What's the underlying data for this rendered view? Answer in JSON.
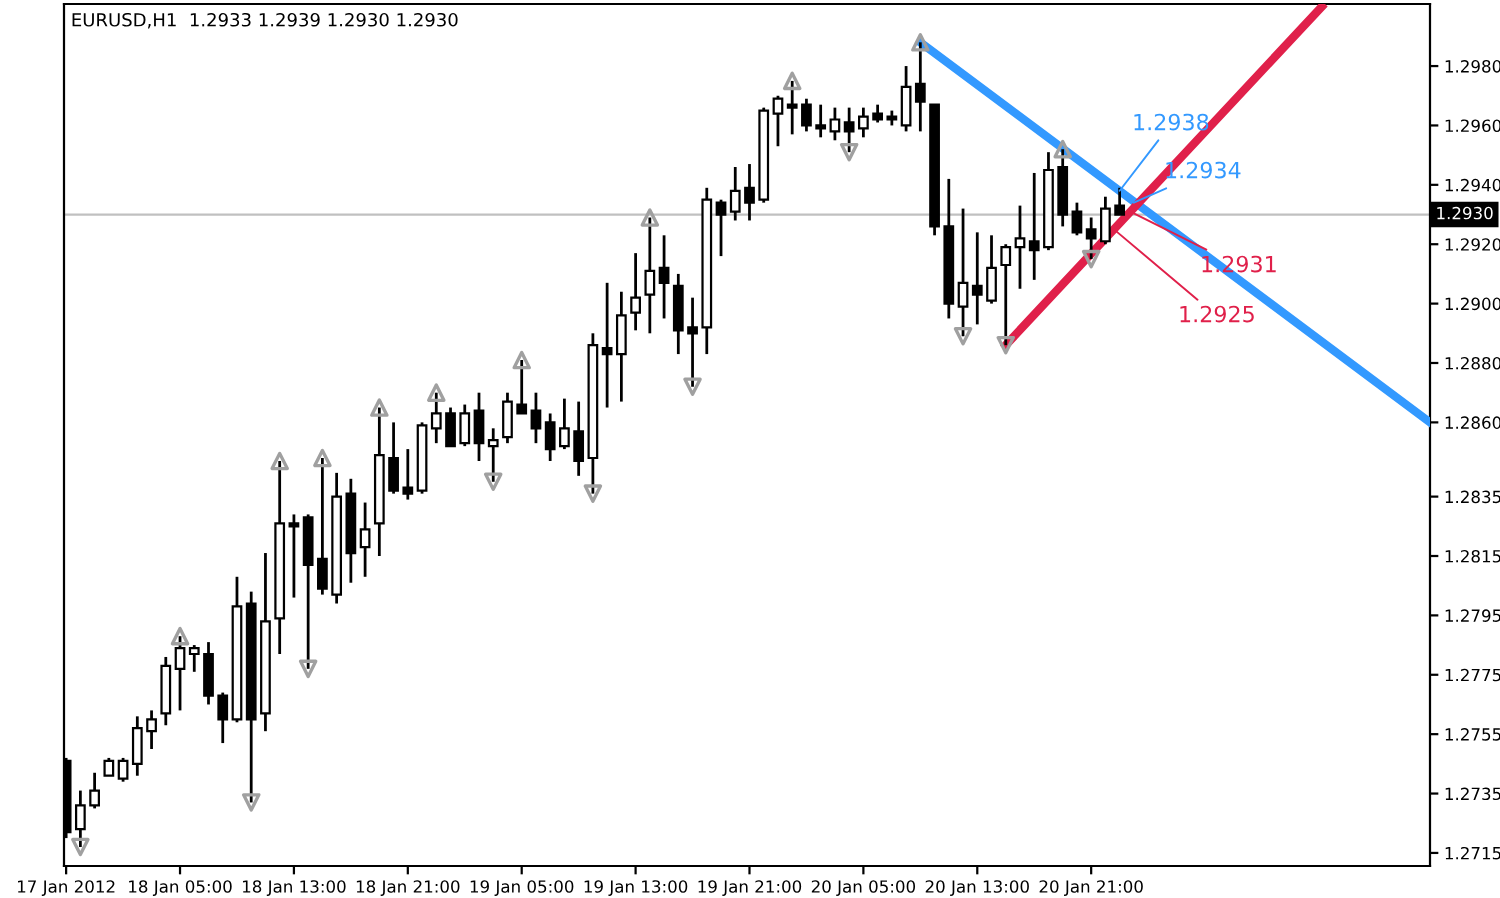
{
  "chart_data": {
    "type": "candlestick",
    "title": "EURUSD,H1  1.2933 1.2939 1.2930 1.2930",
    "x": [
      "2012-01-17T21:00",
      "2012-01-17T22:00",
      "2012-01-17T23:00",
      "2012-01-18T00:00",
      "2012-01-18T01:00",
      "2012-01-18T02:00",
      "2012-01-18T03:00",
      "2012-01-18T04:00",
      "2012-01-18T05:00",
      "2012-01-18T06:00",
      "2012-01-18T07:00",
      "2012-01-18T08:00",
      "2012-01-18T09:00",
      "2012-01-18T10:00",
      "2012-01-18T11:00",
      "2012-01-18T12:00",
      "2012-01-18T13:00",
      "2012-01-18T14:00",
      "2012-01-18T15:00",
      "2012-01-18T16:00",
      "2012-01-18T17:00",
      "2012-01-18T18:00",
      "2012-01-18T19:00",
      "2012-01-18T20:00",
      "2012-01-18T21:00",
      "2012-01-18T22:00",
      "2012-01-18T23:00",
      "2012-01-19T00:00",
      "2012-01-19T01:00",
      "2012-01-19T02:00",
      "2012-01-19T03:00",
      "2012-01-19T04:00",
      "2012-01-19T05:00",
      "2012-01-19T06:00",
      "2012-01-19T07:00",
      "2012-01-19T08:00",
      "2012-01-19T09:00",
      "2012-01-19T10:00",
      "2012-01-19T11:00",
      "2012-01-19T12:00",
      "2012-01-19T13:00",
      "2012-01-19T14:00",
      "2012-01-19T15:00",
      "2012-01-19T16:00",
      "2012-01-19T17:00",
      "2012-01-19T18:00",
      "2012-01-19T19:00",
      "2012-01-19T20:00",
      "2012-01-19T21:00",
      "2012-01-19T22:00",
      "2012-01-19T23:00",
      "2012-01-20T00:00",
      "2012-01-20T01:00",
      "2012-01-20T02:00",
      "2012-01-20T03:00",
      "2012-01-20T04:00",
      "2012-01-20T05:00",
      "2012-01-20T06:00",
      "2012-01-20T07:00",
      "2012-01-20T08:00",
      "2012-01-20T09:00",
      "2012-01-20T10:00",
      "2012-01-20T11:00",
      "2012-01-20T12:00",
      "2012-01-20T13:00",
      "2012-01-20T14:00",
      "2012-01-20T15:00",
      "2012-01-20T16:00",
      "2012-01-20T17:00",
      "2012-01-20T18:00",
      "2012-01-20T19:00",
      "2012-01-20T20:00",
      "2012-01-20T21:00",
      "2012-01-20T22:00",
      "2012-01-20T23:00"
    ],
    "ohlc": [
      [
        1.2746,
        1.2747,
        1.272,
        1.2722
      ],
      [
        1.2723,
        1.2736,
        1.2717,
        1.2731
      ],
      [
        1.2731,
        1.2742,
        1.273,
        1.2736
      ],
      [
        1.2741,
        1.2747,
        1.2741,
        1.2746
      ],
      [
        1.274,
        1.2747,
        1.2739,
        1.2746
      ],
      [
        1.2745,
        1.2761,
        1.2741,
        1.2757
      ],
      [
        1.2756,
        1.2763,
        1.275,
        1.276
      ],
      [
        1.2762,
        1.2781,
        1.2758,
        1.2778
      ],
      [
        1.2777,
        1.2788,
        1.2763,
        1.2784
      ],
      [
        1.2782,
        1.2785,
        1.2776,
        1.2784
      ],
      [
        1.2782,
        1.2786,
        1.2765,
        1.2768
      ],
      [
        1.2768,
        1.2769,
        1.2752,
        1.276
      ],
      [
        1.276,
        1.2808,
        1.2759,
        1.2798
      ],
      [
        1.2799,
        1.2803,
        1.2732,
        1.276
      ],
      [
        1.2762,
        1.2816,
        1.2756,
        1.2793
      ],
      [
        1.2794,
        1.2847,
        1.2782,
        1.2826
      ],
      [
        1.2826,
        1.2829,
        1.2801,
        1.2825
      ],
      [
        1.2828,
        1.2829,
        1.2777,
        1.2812
      ],
      [
        1.2814,
        1.2848,
        1.2802,
        1.2804
      ],
      [
        1.2802,
        1.2843,
        1.2799,
        1.2835
      ],
      [
        1.2836,
        1.2841,
        1.2806,
        1.2816
      ],
      [
        1.2818,
        1.2833,
        1.2808,
        1.2824
      ],
      [
        1.2826,
        1.2865,
        1.2815,
        1.2849
      ],
      [
        1.2848,
        1.286,
        1.2836,
        1.2837
      ],
      [
        1.2838,
        1.2851,
        1.2834,
        1.2836
      ],
      [
        1.2837,
        1.286,
        1.2836,
        1.2859
      ],
      [
        1.2858,
        1.287,
        1.2853,
        1.2863
      ],
      [
        1.2863,
        1.2865,
        1.2852,
        1.2852
      ],
      [
        1.2853,
        1.2866,
        1.2852,
        1.2863
      ],
      [
        1.2864,
        1.287,
        1.2847,
        1.2853
      ],
      [
        1.2852,
        1.2858,
        1.284,
        1.2854
      ],
      [
        1.2855,
        1.287,
        1.2853,
        1.2867
      ],
      [
        1.2866,
        1.2881,
        1.2863,
        1.2863
      ],
      [
        1.2864,
        1.287,
        1.2853,
        1.2858
      ],
      [
        1.286,
        1.2863,
        1.2847,
        1.2851
      ],
      [
        1.2852,
        1.2868,
        1.2851,
        1.2858
      ],
      [
        1.2857,
        1.2867,
        1.2842,
        1.2847
      ],
      [
        1.2848,
        1.289,
        1.2836,
        1.2886
      ],
      [
        1.2885,
        1.2907,
        1.2865,
        1.2883
      ],
      [
        1.2883,
        1.2904,
        1.2867,
        1.2896
      ],
      [
        1.2897,
        1.2917,
        1.2891,
        1.2902
      ],
      [
        1.2903,
        1.2929,
        1.289,
        1.2911
      ],
      [
        1.2912,
        1.2923,
        1.2895,
        1.2907
      ],
      [
        1.2906,
        1.291,
        1.2883,
        1.2891
      ],
      [
        1.2892,
        1.2902,
        1.2872,
        1.289
      ],
      [
        1.2892,
        1.2939,
        1.2883,
        1.2935
      ],
      [
        1.2934,
        1.2935,
        1.2916,
        1.293
      ],
      [
        1.2931,
        1.2946,
        1.2928,
        1.2938
      ],
      [
        1.2939,
        1.2947,
        1.2928,
        1.2934
      ],
      [
        1.2935,
        1.2966,
        1.2934,
        1.2965
      ],
      [
        1.2964,
        1.297,
        1.2953,
        1.2969
      ],
      [
        1.2967,
        1.2975,
        1.2957,
        1.2966
      ],
      [
        1.2967,
        1.2969,
        1.2958,
        1.296
      ],
      [
        1.296,
        1.2967,
        1.2956,
        1.2959
      ],
      [
        1.2958,
        1.2966,
        1.2955,
        1.2962
      ],
      [
        1.2961,
        1.2966,
        1.2951,
        1.2958
      ],
      [
        1.2959,
        1.2966,
        1.2956,
        1.2963
      ],
      [
        1.2964,
        1.2967,
        1.2961,
        1.2962
      ],
      [
        1.2963,
        1.2965,
        1.296,
        1.2962
      ],
      [
        1.296,
        1.298,
        1.2958,
        1.2973
      ],
      [
        1.2974,
        1.2988,
        1.2958,
        1.2968
      ],
      [
        1.2967,
        1.2967,
        1.2923,
        1.2926
      ],
      [
        1.2926,
        1.2942,
        1.2895,
        1.29
      ],
      [
        1.2899,
        1.2932,
        1.2889,
        1.2907
      ],
      [
        1.2906,
        1.2924,
        1.2893,
        1.2903
      ],
      [
        1.2901,
        1.2923,
        1.29,
        1.2912
      ],
      [
        1.2913,
        1.292,
        1.2886,
        1.2919
      ],
      [
        1.2919,
        1.2933,
        1.2905,
        1.2922
      ],
      [
        1.2921,
        1.2944,
        1.2908,
        1.2918
      ],
      [
        1.2919,
        1.2951,
        1.2918,
        1.2945
      ],
      [
        1.2946,
        1.2952,
        1.2926,
        1.293
      ],
      [
        1.2931,
        1.2934,
        1.2923,
        1.2924
      ],
      [
        1.2925,
        1.2929,
        1.2915,
        1.2922
      ],
      [
        1.2921,
        1.2936,
        1.292,
        1.2932
      ],
      [
        1.2933,
        1.2939,
        1.293,
        1.293
      ]
    ],
    "series": [
      {
        "type": "line",
        "color": "#3399ff",
        "x": [
          "2012-01-20T09:00",
          "2012-01-21T20:48"
        ],
        "values": [
          1.2988,
          1.286
        ]
      },
      {
        "type": "line",
        "color": "#e0204a",
        "x": [
          "2012-01-20T15:00",
          "2012-01-21T13:12"
        ],
        "values": [
          1.2886,
          1.3
        ]
      },
      {
        "type": "scatter",
        "color": "#a0a0a0",
        "marker": "triangle",
        "x": [
          "2012-01-18T05:00",
          "2012-01-18T12:00",
          "2012-01-18T15:00",
          "2012-01-18T19:00",
          "2012-01-18T23:00",
          "2012-01-19T05:00",
          "2012-01-19T14:00",
          "2012-01-20T00:00",
          "2012-01-20T09:00",
          "2012-01-20T19:00"
        ],
        "values": [
          1.2788,
          1.2847,
          1.2848,
          1.2865,
          1.287,
          1.2881,
          1.2929,
          1.2975,
          1.2988,
          1.2952
        ]
      },
      {
        "type": "scatter",
        "color": "#a0a0a0",
        "marker": "triangle",
        "x": [
          "2012-01-17T22:00",
          "2012-01-18T10:00",
          "2012-01-18T14:00",
          "2012-01-19T03:00",
          "2012-01-19T10:00",
          "2012-01-19T17:00",
          "2012-01-20T04:00",
          "2012-01-20T12:00",
          "2012-01-20T15:00",
          "2012-01-20T21:00"
        ],
        "values": [
          1.2717,
          1.2732,
          1.2777,
          1.284,
          1.2836,
          1.2872,
          1.2951,
          1.2889,
          1.2886,
          1.2915
        ]
      }
    ],
    "annotations": [
      {
        "text": "1.2938",
        "x": "2012-01-20T23:00",
        "y": 1.2938
      },
      {
        "text": "1.2934",
        "x": "2012-01-21T00:00",
        "y": 1.2934
      },
      {
        "text": "1.2931",
        "x": "2012-01-20T23:45",
        "y": 1.2931
      },
      {
        "text": "1.2925",
        "x": "2012-01-20T22:36",
        "y": 1.2925
      }
    ],
    "ref_lines": [
      {
        "axis": "y",
        "value": 1.293,
        "label": "1.2930",
        "color": "#c0c0c0"
      }
    ],
    "xlim": [
      "2012-01-17T20:51",
      "2012-01-21T20:48"
    ],
    "ylim": [
      1.27106,
      1.30009
    ],
    "xticks": [
      {
        "value": "2012-01-17T21:00",
        "label": "17 Jan 2012"
      },
      {
        "value": "2012-01-18T05:00",
        "label": "18 Jan 05:00"
      },
      {
        "value": "2012-01-18T13:00",
        "label": "18 Jan 13:00"
      },
      {
        "value": "2012-01-18T21:00",
        "label": "18 Jan 21:00"
      },
      {
        "value": "2012-01-19T05:00",
        "label": "19 Jan 05:00"
      },
      {
        "value": "2012-01-19T13:00",
        "label": "19 Jan 13:00"
      },
      {
        "value": "2012-01-19T21:00",
        "label": "19 Jan 21:00"
      },
      {
        "value": "2012-01-20T05:00",
        "label": "20 Jan 05:00"
      },
      {
        "value": "2012-01-20T13:00",
        "label": "20 Jan 13:00"
      },
      {
        "value": "2012-01-20T21:00",
        "label": "20 Jan 21:00"
      }
    ],
    "yticks": [
      {
        "value": 1.298,
        "label": "1.2980"
      },
      {
        "value": 1.296,
        "label": "1.2960"
      },
      {
        "value": 1.294,
        "label": "1.2940"
      },
      {
        "value": 1.292,
        "label": "1.2920"
      },
      {
        "value": 1.29,
        "label": "1.2900"
      },
      {
        "value": 1.288,
        "label": "1.2880"
      },
      {
        "value": 1.286,
        "label": "1.2860"
      },
      {
        "value": 1.2835,
        "label": "1.2835"
      },
      {
        "value": 1.2815,
        "label": "1.2815"
      },
      {
        "value": 1.2795,
        "label": "1.2795"
      },
      {
        "value": 1.2775,
        "label": "1.2775"
      },
      {
        "value": 1.2755,
        "label": "1.2755"
      },
      {
        "value": 1.2735,
        "label": "1.2735"
      },
      {
        "value": 1.2715,
        "label": "1.2715"
      }
    ],
    "grid": false,
    "legend": false
  }
}
